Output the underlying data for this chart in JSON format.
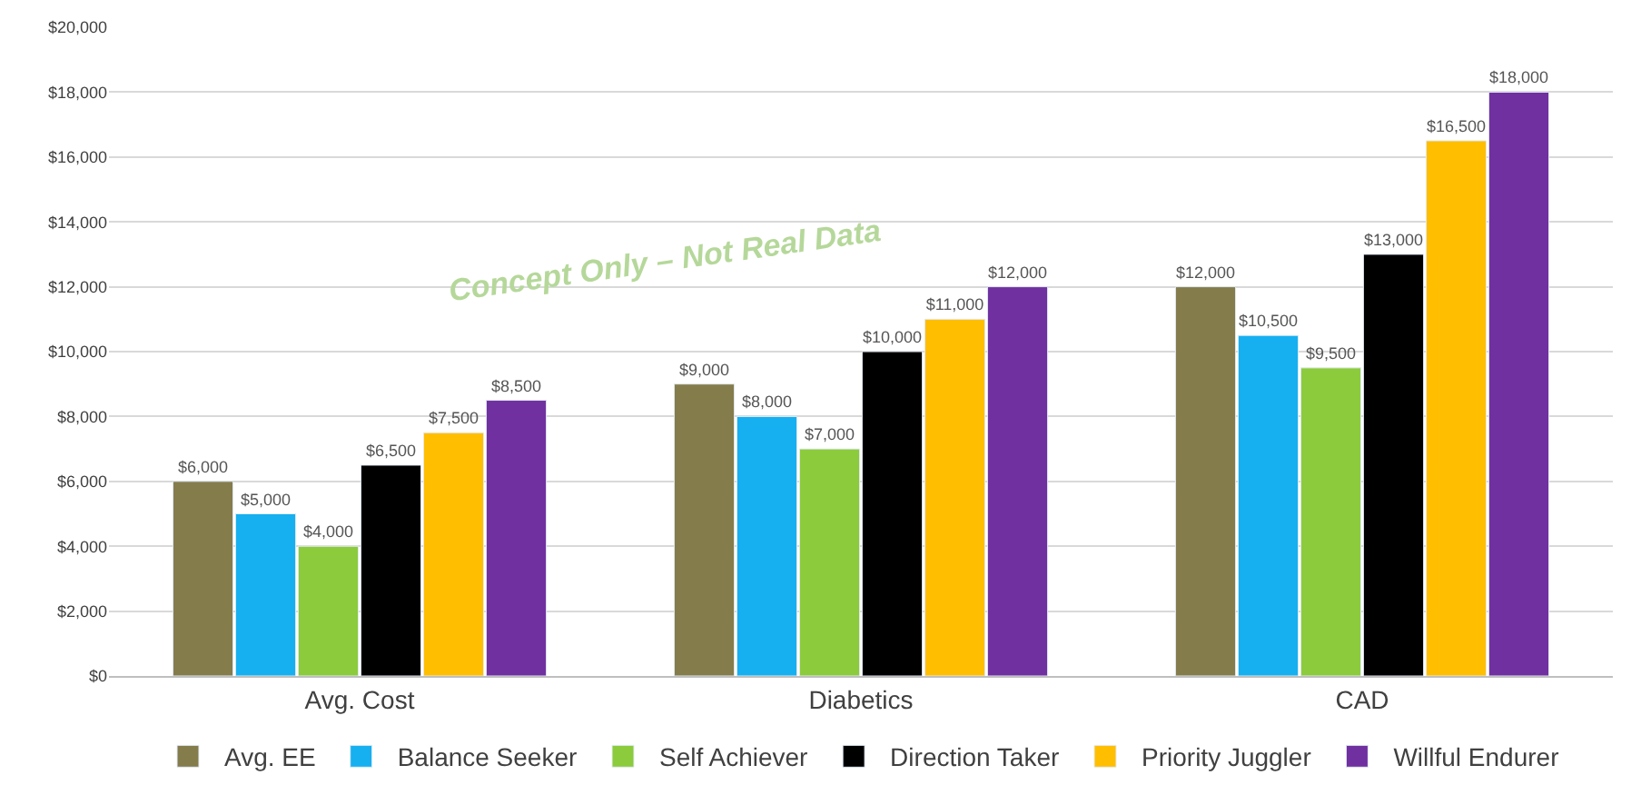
{
  "chart_data": {
    "type": "bar",
    "categories": [
      "Avg. Cost",
      "Diabetics",
      "CAD"
    ],
    "series": [
      {
        "name": "Avg. EE",
        "color": "#857c4c",
        "values": [
          6000,
          9000,
          12000
        ],
        "value_labels": [
          "$6,000",
          "$9,000",
          "$12,000"
        ]
      },
      {
        "name": "Balance Seeker",
        "color": "#16b0f0",
        "values": [
          5000,
          8000,
          10500
        ],
        "value_labels": [
          "$5,000",
          "$8,000",
          "$10,500"
        ]
      },
      {
        "name": "Self Achiever",
        "color": "#8ccb3c",
        "values": [
          4000,
          7000,
          9500
        ],
        "value_labels": [
          "$4,000",
          "$7,000",
          "$9,500"
        ]
      },
      {
        "name": "Direction Taker",
        "color": "#000000",
        "values": [
          6500,
          10000,
          13000
        ],
        "value_labels": [
          "$6,500",
          "$10,000",
          "$13,000"
        ]
      },
      {
        "name": "Priority Juggler",
        "color": "#ffbe00",
        "values": [
          7500,
          11000,
          16500
        ],
        "value_labels": [
          "$7,500",
          "$11,000",
          "$16,500"
        ]
      },
      {
        "name": "Willful Endurer",
        "color": "#7030a0",
        "values": [
          8500,
          12000,
          18000
        ],
        "value_labels": [
          "$8,500",
          "$12,000",
          "$18,000"
        ]
      }
    ],
    "ylim": [
      0,
      20000
    ],
    "yticks": [
      {
        "value": 0,
        "label": "$0"
      },
      {
        "value": 2000,
        "label": "$2,000"
      },
      {
        "value": 4000,
        "label": "$4,000"
      },
      {
        "value": 6000,
        "label": "$6,000"
      },
      {
        "value": 8000,
        "label": "$8,000"
      },
      {
        "value": 10000,
        "label": "$10,000"
      },
      {
        "value": 12000,
        "label": "$12,000"
      },
      {
        "value": 14000,
        "label": "$14,000"
      },
      {
        "value": 16000,
        "label": "$16,000"
      },
      {
        "value": 18000,
        "label": "$18,000"
      },
      {
        "value": 20000,
        "label": "$20,000"
      }
    ],
    "grid": "y",
    "legend": "bottom",
    "annotations": [
      "Concept Only – Not Real Data"
    ]
  }
}
